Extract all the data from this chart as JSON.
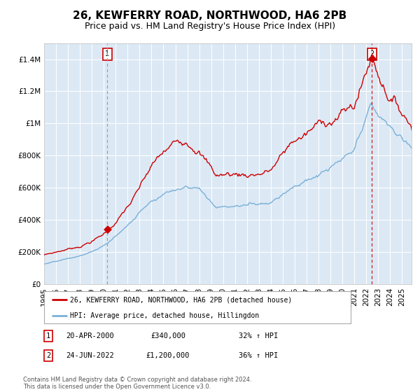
{
  "title": "26, KEWFERRY ROAD, NORTHWOOD, HA6 2PB",
  "subtitle": "Price paid vs. HM Land Registry's House Price Index (HPI)",
  "plot_bg_color": "#dce9f5",
  "red_line_color": "#cc0000",
  "blue_line_color": "#7ab0d8",
  "sale1_year": 2000.3,
  "sale1_price": 340000,
  "sale1_label": "1",
  "sale2_year": 2022.48,
  "sale2_price": 1200000,
  "sale2_label": "2",
  "ylim_min": 0,
  "ylim_max": 1500000,
  "xlim_min": 1995.0,
  "xlim_max": 2025.8,
  "ylabel_ticks": [
    0,
    200000,
    400000,
    600000,
    800000,
    1000000,
    1200000,
    1400000
  ],
  "ylabel_labels": [
    "£0",
    "£200K",
    "£400K",
    "£600K",
    "£800K",
    "£1M",
    "£1.2M",
    "£1.4M"
  ],
  "legend_label_red": "26, KEWFERRY ROAD, NORTHWOOD, HA6 2PB (detached house)",
  "legend_label_blue": "HPI: Average price, detached house, Hillingdon",
  "table_row1": [
    "1",
    "20-APR-2000",
    "£340,000",
    "32% ↑ HPI"
  ],
  "table_row2": [
    "2",
    "24-JUN-2022",
    "£1,200,000",
    "36% ↑ HPI"
  ],
  "footer": "Contains HM Land Registry data © Crown copyright and database right 2024.\nThis data is licensed under the Open Government Licence v3.0.",
  "title_fontsize": 11,
  "subtitle_fontsize": 9,
  "tick_fontsize": 7.5,
  "box_color": "#cc0000"
}
